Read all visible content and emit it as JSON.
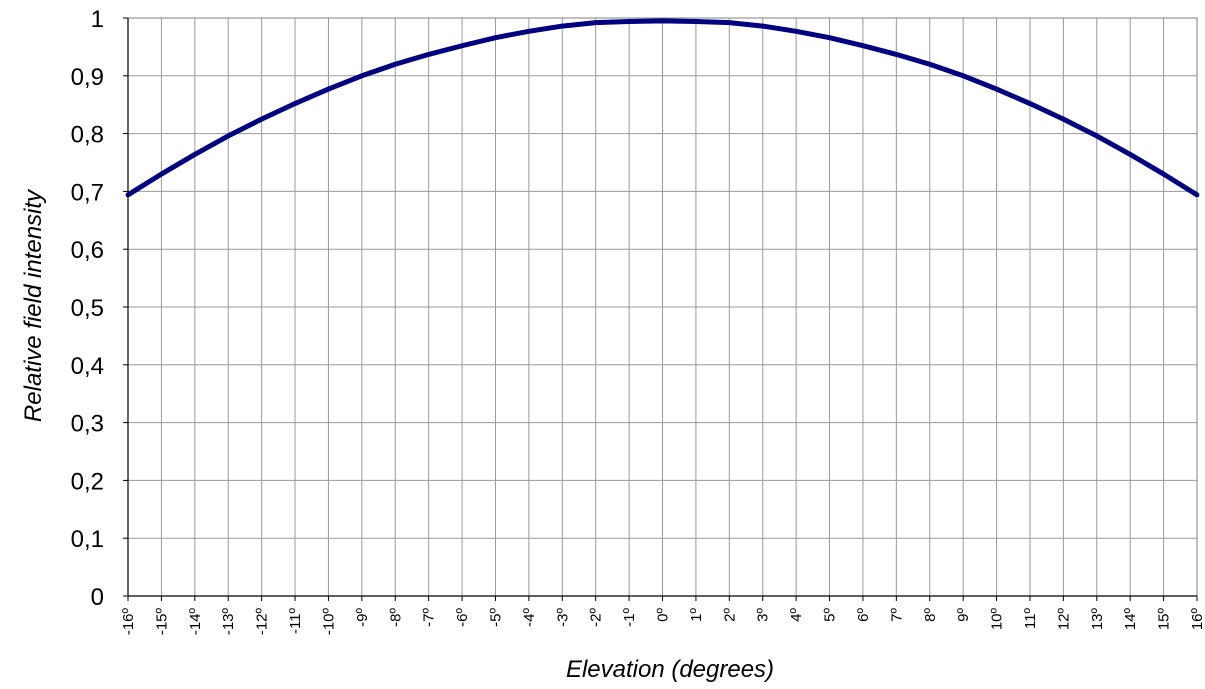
{
  "chart_data": {
    "type": "line",
    "title": "",
    "xlabel": "Elevation (degrees)",
    "ylabel": "Relative field intensity",
    "x": [
      -16,
      -15,
      -14,
      -13,
      -12,
      -11,
      -10,
      -9,
      -8,
      -7,
      -6,
      -5,
      -4,
      -3,
      -2,
      -1,
      0,
      1,
      2,
      3,
      4,
      5,
      6,
      7,
      8,
      9,
      10,
      11,
      12,
      13,
      14,
      15,
      16
    ],
    "x_tick_labels": [
      "-16º",
      "-15º",
      "-14º",
      "-13º",
      "-12º",
      "-11º",
      "-10º",
      "-9º",
      "-8º",
      "-7º",
      "-6º",
      "-5º",
      "-4º",
      "-3º",
      "-2º",
      "-1º",
      "0º",
      "1º",
      "2º",
      "3º",
      "4º",
      "5º",
      "6º",
      "7º",
      "8º",
      "9º",
      "10º",
      "11º",
      "12º",
      "13º",
      "14º",
      "15º",
      "16º"
    ],
    "y_tick_labels": [
      "0",
      "0,1",
      "0,2",
      "0,3",
      "0,4",
      "0,5",
      "0,6",
      "0,7",
      "0,8",
      "0,9",
      "1"
    ],
    "y_ticks": [
      0,
      0.1,
      0.2,
      0.3,
      0.4,
      0.5,
      0.6,
      0.7,
      0.8,
      0.9,
      1.0
    ],
    "ylim": [
      0,
      1
    ],
    "grid": true,
    "series": [
      {
        "color": "#000080",
        "values": [
          0.694,
          0.73,
          0.764,
          0.796,
          0.825,
          0.852,
          0.877,
          0.9,
          0.92,
          0.937,
          0.952,
          0.966,
          0.977,
          0.986,
          0.992,
          0.994,
          0.995,
          0.994,
          0.992,
          0.986,
          0.977,
          0.966,
          0.952,
          0.937,
          0.92,
          0.9,
          0.877,
          0.852,
          0.825,
          0.796,
          0.764,
          0.73,
          0.694
        ]
      }
    ]
  }
}
